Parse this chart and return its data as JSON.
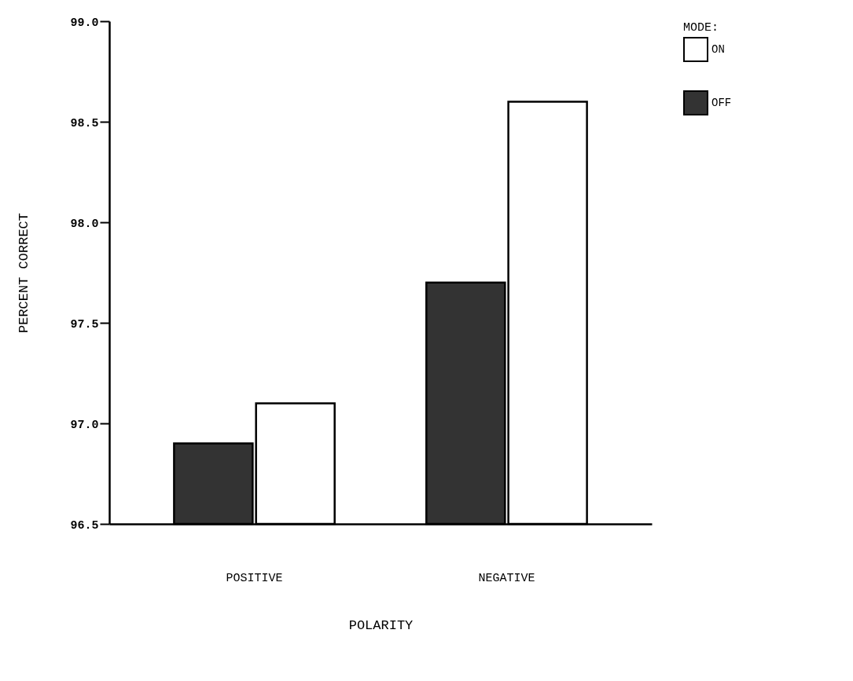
{
  "chart_data": {
    "type": "bar",
    "xlabel": "POLARITY",
    "ylabel": "PERCENT CORRECT",
    "legend_title": "MODE:",
    "categories": [
      "POSITIVE",
      "NEGATIVE"
    ],
    "series": [
      {
        "name": "ON",
        "color": "#ffffff",
        "values": [
          97.1,
          98.6
        ]
      },
      {
        "name": "OFF",
        "color": "#333333",
        "values": [
          96.9,
          97.7
        ]
      }
    ],
    "ylim": [
      96.5,
      99.0
    ],
    "yticks": [
      {
        "value": 96.5,
        "label": "96.5"
      },
      {
        "value": 97,
        "label": "97.0"
      },
      {
        "value": 97.5,
        "label": "97.5"
      },
      {
        "value": 98,
        "label": "98.0"
      },
      {
        "value": 98.5,
        "label": "98.5"
      },
      {
        "value": 99,
        "label": "99.0"
      }
    ],
    "grid": false,
    "legend": "top right"
  }
}
